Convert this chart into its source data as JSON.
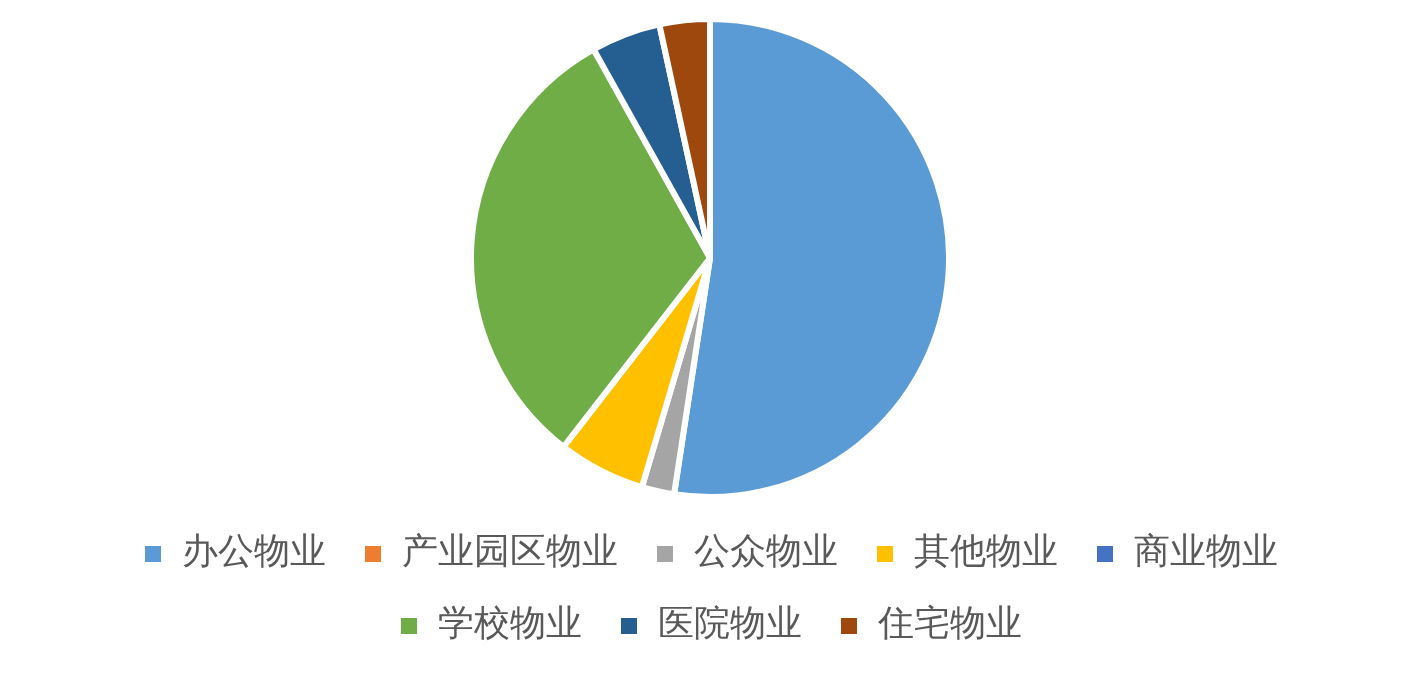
{
  "chart_data": {
    "type": "pie",
    "categories": [
      "办公物业",
      "产业园区物业",
      "公众物业",
      "其他物业",
      "商业物业",
      "学校物业",
      "医院物业",
      "住宅物业"
    ],
    "values": [
      52.4,
      0,
      2.2,
      5.9,
      0,
      31.4,
      4.7,
      3.4
    ],
    "colors": [
      "#5b9bd5",
      "#ed7d31",
      "#a5a5a5",
      "#ffc000",
      "#4472c4",
      "#70ad47",
      "#255e91",
      "#9e480e"
    ],
    "legend": "bottom"
  }
}
